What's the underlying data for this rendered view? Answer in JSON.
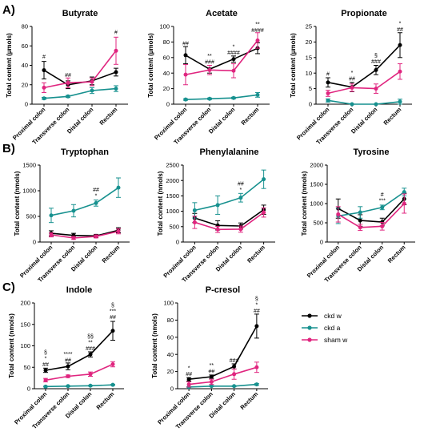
{
  "panel_labels": [
    "A)",
    "B)",
    "C)"
  ],
  "legend": [
    {
      "name": "ckd w",
      "color": "#000000"
    },
    {
      "name": "ckd a",
      "color": "#17918f"
    },
    {
      "name": "sham w",
      "color": "#e0257f"
    }
  ],
  "chart_data": [
    {
      "type": "line",
      "title": "Butyrate",
      "ylabel": "Total content (µmols)",
      "categories": [
        "Proximal colon",
        "Transverse colon",
        "Distal colon",
        "Rectum"
      ],
      "ylim": [
        0,
        80
      ],
      "yticks": [
        0,
        20,
        40,
        60,
        80
      ],
      "series": [
        {
          "name": "ckd w",
          "color": "#000000",
          "values": [
            35,
            20,
            24,
            33
          ],
          "errors": [
            9,
            4,
            4,
            4
          ]
        },
        {
          "name": "ckd a",
          "color": "#17918f",
          "values": [
            6,
            8,
            14,
            16
          ],
          "errors": [
            1,
            1,
            3,
            3
          ]
        },
        {
          "name": "sham w",
          "color": "#e0257f",
          "values": [
            17,
            22,
            23,
            55
          ],
          "errors": [
            5,
            5,
            4,
            14
          ]
        }
      ],
      "annotations": [
        {
          "category": 0,
          "lines": [
            "#"
          ],
          "y": 47
        },
        {
          "category": 1,
          "lines": [
            "##"
          ],
          "y": 28
        },
        {
          "category": 3,
          "lines": [
            "#"
          ],
          "y": 72
        }
      ]
    },
    {
      "type": "line",
      "title": "Acetate",
      "ylabel": "Total content (µmols)",
      "categories": [
        "Proximal colon",
        "Transverse colon",
        "Distal colon",
        "Rectum"
      ],
      "ylim": [
        0,
        100
      ],
      "yticks": [
        0,
        20,
        40,
        60,
        80,
        100
      ],
      "series": [
        {
          "name": "ckd w",
          "color": "#000000",
          "values": [
            63,
            45,
            58,
            72
          ],
          "errors": [
            11,
            5,
            4,
            7
          ]
        },
        {
          "name": "ckd a",
          "color": "#17918f",
          "values": [
            6,
            7,
            8,
            12
          ],
          "errors": [
            1,
            1,
            1,
            3
          ]
        },
        {
          "name": "sham w",
          "color": "#e0257f",
          "values": [
            38,
            44,
            43,
            82
          ],
          "errors": [
            13,
            6,
            9,
            10
          ]
        }
      ],
      "annotations": [
        {
          "category": 0,
          "lines": [
            "##"
          ],
          "y": 76
        },
        {
          "category": 1,
          "lines": [
            "**",
            "###"
          ],
          "y": 52
        },
        {
          "category": 2,
          "lines": [
            "*",
            "####"
          ],
          "y": 64
        },
        {
          "category": 3,
          "lines": [
            "**",
            "####"
          ],
          "y": 93
        }
      ]
    },
    {
      "type": "line",
      "title": "Propionate",
      "ylabel": "Total content (µmols)",
      "categories": [
        "Proximal colon",
        "Transverse colon",
        "Distal colon",
        "Rectum"
      ],
      "ylim": [
        0,
        25
      ],
      "yticks": [
        0,
        5,
        10,
        15,
        20,
        25
      ],
      "series": [
        {
          "name": "ckd w",
          "color": "#000000",
          "values": [
            7,
            5.5,
            11,
            19
          ],
          "errors": [
            1.5,
            1.5,
            1.5,
            4
          ]
        },
        {
          "name": "ckd a",
          "color": "#17918f",
          "values": [
            1.2,
            0,
            0,
            0.8
          ],
          "errors": [
            0.5,
            0,
            0,
            0.8
          ]
        },
        {
          "name": "sham w",
          "color": "#e0257f",
          "values": [
            3.5,
            5.3,
            5,
            10.5
          ],
          "errors": [
            1,
            1.2,
            1.5,
            2.5
          ]
        }
      ],
      "annotations": [
        {
          "category": 0,
          "lines": [
            "#"
          ],
          "y": 9.2
        },
        {
          "category": 1,
          "lines": [
            "*",
            "##"
          ],
          "y": 7.6
        },
        {
          "category": 2,
          "lines": [
            "§",
            "###"
          ],
          "y": 13.2
        },
        {
          "category": 3,
          "lines": [
            "*",
            "##"
          ],
          "y": 23.5
        }
      ]
    },
    {
      "type": "line",
      "title": "Tryptophan",
      "ylabel": "Total content (nmols)",
      "categories": [
        "Proximal colon",
        "Transverse colon",
        "Distal colon",
        "Rectum"
      ],
      "ylim": [
        0,
        1500
      ],
      "yticks": [
        0,
        500,
        1000,
        1500
      ],
      "series": [
        {
          "name": "ckd w",
          "color": "#000000",
          "values": [
            170,
            130,
            120,
            230
          ],
          "errors": [
            50,
            40,
            30,
            50
          ]
        },
        {
          "name": "ckd a",
          "color": "#17918f",
          "values": [
            520,
            610,
            760,
            1060
          ],
          "errors": [
            140,
            120,
            60,
            190
          ]
        },
        {
          "name": "sham w",
          "color": "#e0257f",
          "values": [
            140,
            80,
            110,
            210
          ],
          "errors": [
            40,
            30,
            30,
            50
          ]
        }
      ],
      "annotations": [
        {
          "category": 2,
          "lines": [
            "##",
            "*"
          ],
          "y": 870
        }
      ]
    },
    {
      "type": "line",
      "title": "Phenylalanine",
      "ylabel": "Total content (nmols)",
      "categories": [
        "Proximal colon",
        "Transverse colon",
        "Distal colon",
        "Rectum"
      ],
      "ylim": [
        0,
        2500
      ],
      "yticks": [
        0,
        500,
        1000,
        1500,
        2000,
        2500
      ],
      "series": [
        {
          "name": "ckd w",
          "color": "#000000",
          "values": [
            780,
            540,
            520,
            1050
          ],
          "errors": [
            150,
            150,
            100,
            150
          ]
        },
        {
          "name": "ckd a",
          "color": "#17918f",
          "values": [
            1030,
            1200,
            1440,
            2040
          ],
          "errors": [
            250,
            300,
            140,
            300
          ]
        },
        {
          "name": "sham w",
          "color": "#e0257f",
          "values": [
            640,
            410,
            420,
            960
          ],
          "errors": [
            200,
            100,
            100,
            150
          ]
        }
      ],
      "annotations": [
        {
          "category": 2,
          "lines": [
            "##",
            "*"
          ],
          "y": 1640
        }
      ]
    },
    {
      "type": "line",
      "title": "Tyrosine",
      "ylabel": "Total content (nmols)",
      "categories": [
        "Proximal colon",
        "Transverse colon",
        "Distal colon",
        "Rectum"
      ],
      "ylim": [
        0,
        2000
      ],
      "yticks": [
        0,
        500,
        1000,
        1500,
        2000
      ],
      "series": [
        {
          "name": "ckd w",
          "color": "#000000",
          "values": [
            870,
            560,
            520,
            1120
          ],
          "errors": [
            250,
            150,
            100,
            150
          ]
        },
        {
          "name": "ckd a",
          "color": "#17918f",
          "values": [
            680,
            770,
            900,
            1300
          ],
          "errors": [
            200,
            150,
            60,
            100
          ]
        },
        {
          "name": "sham w",
          "color": "#e0257f",
          "values": [
            720,
            380,
            410,
            1000
          ],
          "errors": [
            200,
            80,
            100,
            250
          ]
        }
      ],
      "annotations": [
        {
          "category": 2,
          "lines": [
            "#",
            "***"
          ],
          "y": 1030
        }
      ]
    },
    {
      "type": "line",
      "title": "Indole",
      "ylabel": "Total content (nmols)",
      "categories": [
        "Proximal colon",
        "Transverse colon",
        "Distal colon",
        "Rectum"
      ],
      "ylim": [
        0,
        200
      ],
      "yticks": [
        0,
        50,
        100,
        150,
        200
      ],
      "series": [
        {
          "name": "ckd w",
          "color": "#000000",
          "values": [
            43,
            52,
            80,
            135
          ],
          "errors": [
            5,
            8,
            6,
            22
          ]
        },
        {
          "name": "ckd a",
          "color": "#17918f",
          "values": [
            5,
            6,
            7,
            9
          ],
          "errors": [
            1,
            1,
            1,
            1
          ]
        },
        {
          "name": "sham w",
          "color": "#e0257f",
          "values": [
            20,
            29,
            34,
            57
          ],
          "errors": [
            4,
            3,
            5,
            6
          ]
        }
      ],
      "annotations": [
        {
          "category": 0,
          "lines": [
            "§",
            "*",
            "##"
          ],
          "y": 52
        },
        {
          "category": 1,
          "lines": [
            "****",
            "##"
          ],
          "y": 63
        },
        {
          "category": 2,
          "lines": [
            "§§",
            "**",
            "###"
          ],
          "y": 90
        },
        {
          "category": 3,
          "lines": [
            "§",
            "***",
            "##"
          ],
          "y": 163
        }
      ]
    },
    {
      "type": "line",
      "title": "P-cresol",
      "ylabel": "Total content (nmols)",
      "categories": [
        "Proximal colon",
        "Transverse colon",
        "Distal colon",
        "Rectum"
      ],
      "ylim": [
        0,
        100
      ],
      "yticks": [
        0,
        20,
        40,
        60,
        80,
        100
      ],
      "series": [
        {
          "name": "ckd w",
          "color": "#000000",
          "values": [
            11,
            14,
            26,
            73
          ],
          "errors": [
            2,
            2,
            3,
            14
          ]
        },
        {
          "name": "ckd a",
          "color": "#17918f",
          "values": [
            2,
            3,
            3,
            5
          ],
          "errors": [
            0.5,
            0.5,
            0.5,
            1
          ]
        },
        {
          "name": "sham w",
          "color": "#e0257f",
          "values": [
            5,
            8,
            17,
            25
          ],
          "errors": [
            3,
            3,
            6,
            6
          ]
        }
      ],
      "annotations": [
        {
          "category": 0,
          "lines": [
            "*",
            "##"
          ],
          "y": 15
        },
        {
          "category": 1,
          "lines": [
            "**",
            "##"
          ],
          "y": 18
        },
        {
          "category": 2,
          "lines": [
            "###"
          ],
          "y": 31
        },
        {
          "category": 3,
          "lines": [
            "§",
            "*",
            "##"
          ],
          "y": 89
        }
      ]
    }
  ]
}
